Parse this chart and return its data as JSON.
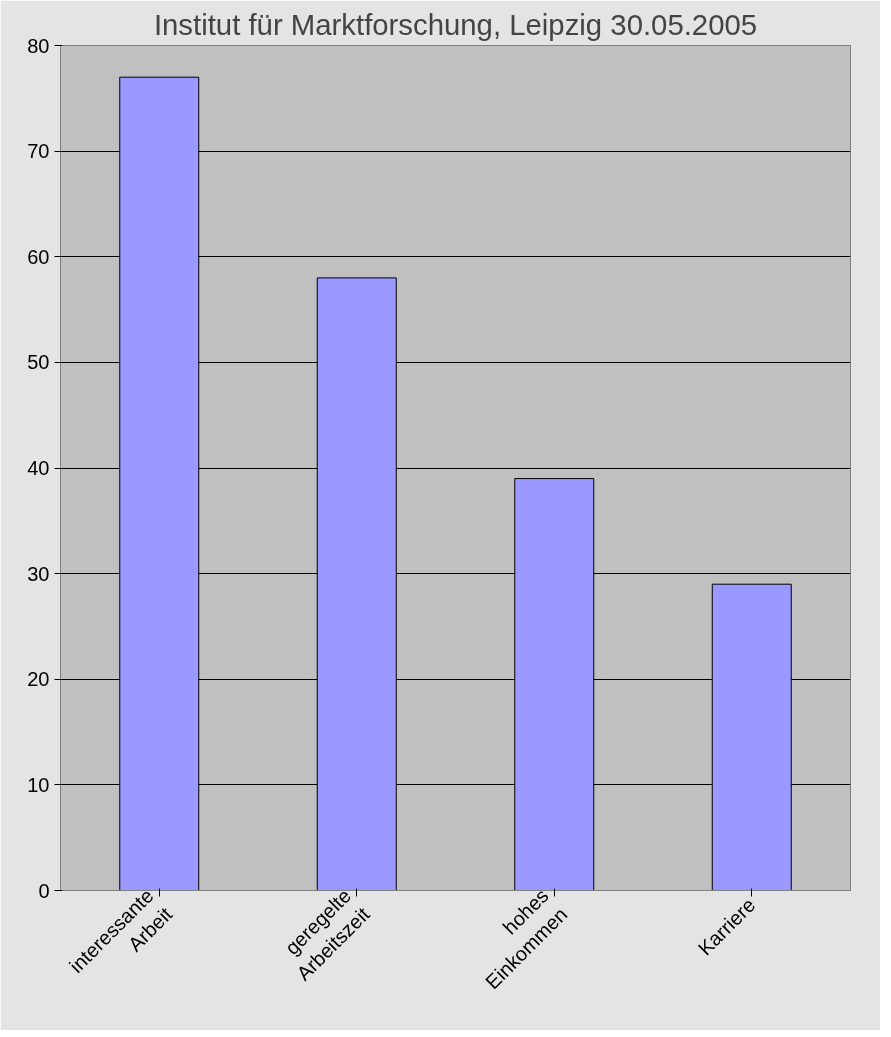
{
  "chart_data": {
    "type": "bar",
    "title": "Institut für Marktforschung, Leipzig 30.05.2005",
    "categories": [
      "interessante\nArbeit",
      "geregelte\nArbeitszeit",
      "hohes\nEinkommen",
      "Karriere"
    ],
    "values": [
      77,
      58,
      39,
      29
    ],
    "color": "#9999ff",
    "ylim": [
      0,
      80
    ],
    "yticks": [
      0,
      10,
      20,
      30,
      40,
      50,
      60,
      70,
      80
    ],
    "grid": "y"
  }
}
